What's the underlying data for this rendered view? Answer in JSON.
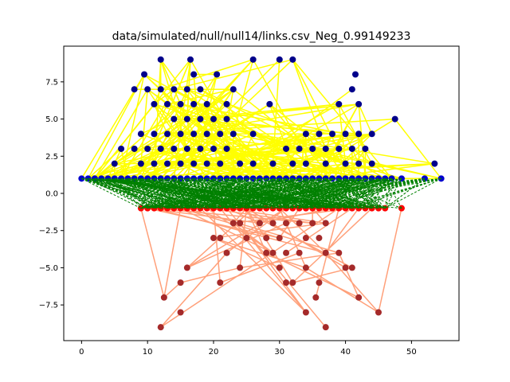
{
  "chart_data": {
    "type": "scatter",
    "title": "data/simulated/null/null14/links.csv_Neg_0.99149233",
    "xlabel": "",
    "ylabel": "",
    "xlim": [
      -2.7,
      57.2
    ],
    "ylim": [
      -9.9,
      9.9
    ],
    "x_ticks": [
      0,
      10,
      20,
      30,
      40,
      50
    ],
    "x_tick_labels": [
      "0",
      "10",
      "20",
      "30",
      "40",
      "50"
    ],
    "y_ticks": [
      -7.5,
      -5.0,
      -2.5,
      0.0,
      2.5,
      5.0,
      7.5
    ],
    "y_tick_labels": [
      "−7.5",
      "−5.0",
      "−2.5",
      "0.0",
      "2.5",
      "5.0",
      "7.5"
    ],
    "grid": false,
    "colors": {
      "upper_edges": "#ffff00",
      "lower_edges": "#ffa07a",
      "cross_edges": "#008000",
      "upper_nodes": "#00008b",
      "baseline_upper_nodes": "#0000cd",
      "lower_nodes": "#a52a2a",
      "baseline_lower_nodes": "#ff0000"
    },
    "upper_nodes": [
      [
        12,
        9
      ],
      [
        16.5,
        9
      ],
      [
        26,
        9
      ],
      [
        30,
        9
      ],
      [
        32,
        9
      ],
      [
        17,
        8
      ],
      [
        20.5,
        8
      ],
      [
        9.5,
        8
      ],
      [
        41.5,
        8
      ],
      [
        8,
        7
      ],
      [
        10,
        7
      ],
      [
        12,
        7
      ],
      [
        14,
        7
      ],
      [
        16,
        7
      ],
      [
        18,
        7
      ],
      [
        23,
        7
      ],
      [
        41,
        7
      ],
      [
        11,
        6
      ],
      [
        13,
        6
      ],
      [
        15,
        6
      ],
      [
        17,
        6
      ],
      [
        19,
        6
      ],
      [
        22,
        6
      ],
      [
        28.5,
        6
      ],
      [
        39,
        6
      ],
      [
        42,
        6
      ],
      [
        14,
        5
      ],
      [
        16,
        5
      ],
      [
        18,
        5
      ],
      [
        20,
        5
      ],
      [
        22,
        5
      ],
      [
        47.5,
        5
      ],
      [
        9,
        4
      ],
      [
        11,
        4
      ],
      [
        13,
        4
      ],
      [
        15,
        4
      ],
      [
        17,
        4
      ],
      [
        19,
        4
      ],
      [
        21,
        4
      ],
      [
        23,
        4
      ],
      [
        26,
        4
      ],
      [
        34,
        4
      ],
      [
        36,
        4
      ],
      [
        38,
        4
      ],
      [
        40,
        4
      ],
      [
        42,
        4
      ],
      [
        44,
        4
      ],
      [
        6,
        3
      ],
      [
        8,
        3
      ],
      [
        10,
        3
      ],
      [
        12,
        3
      ],
      [
        14,
        3
      ],
      [
        16,
        3
      ],
      [
        18,
        3
      ],
      [
        20,
        3
      ],
      [
        22,
        3
      ],
      [
        31,
        3
      ],
      [
        33,
        3
      ],
      [
        35,
        3
      ],
      [
        37,
        3
      ],
      [
        39,
        3
      ],
      [
        41,
        3
      ],
      [
        43,
        3
      ],
      [
        5,
        2
      ],
      [
        9,
        2
      ],
      [
        11,
        2
      ],
      [
        13,
        2
      ],
      [
        15,
        2
      ],
      [
        17,
        2
      ],
      [
        19,
        2
      ],
      [
        21,
        2
      ],
      [
        24,
        2
      ],
      [
        26,
        2
      ],
      [
        29,
        2
      ],
      [
        32,
        2
      ],
      [
        34,
        2
      ],
      [
        37,
        2
      ],
      [
        40,
        2
      ],
      [
        42,
        2
      ],
      [
        44,
        2
      ],
      [
        53.5,
        2
      ]
    ],
    "lower_nodes": [
      [
        20,
        -3
      ],
      [
        21,
        -3
      ],
      [
        23,
        -2
      ],
      [
        24,
        -2
      ],
      [
        27,
        -2
      ],
      [
        29,
        -2
      ],
      [
        31,
        -2
      ],
      [
        33,
        -2
      ],
      [
        35,
        -2
      ],
      [
        37,
        -2
      ],
      [
        22,
        -4
      ],
      [
        25,
        -3
      ],
      [
        28,
        -3
      ],
      [
        30,
        -3
      ],
      [
        34,
        -3
      ],
      [
        36,
        -3
      ],
      [
        28,
        -4
      ],
      [
        29,
        -4
      ],
      [
        31,
        -4
      ],
      [
        33,
        -4
      ],
      [
        37,
        -4
      ],
      [
        39,
        -4
      ],
      [
        16,
        -5
      ],
      [
        24,
        -5
      ],
      [
        30,
        -5
      ],
      [
        34,
        -5
      ],
      [
        40,
        -5
      ],
      [
        41,
        -5
      ],
      [
        15,
        -6
      ],
      [
        21,
        -6
      ],
      [
        31,
        -6
      ],
      [
        32,
        -6
      ],
      [
        36,
        -6
      ],
      [
        12.5,
        -7
      ],
      [
        35.5,
        -7
      ],
      [
        42,
        -7
      ],
      [
        15,
        -8
      ],
      [
        34,
        -8
      ],
      [
        45,
        -8
      ],
      [
        12,
        -9
      ],
      [
        37,
        -9
      ]
    ],
    "baseline_upper_x": [
      0,
      1,
      2,
      3,
      4,
      5,
      6,
      7,
      8,
      9,
      10,
      11,
      12,
      13,
      14,
      15,
      16,
      17,
      18,
      19,
      20,
      21,
      22,
      23,
      24,
      25,
      26,
      27,
      28,
      29,
      30,
      31,
      32,
      33,
      34,
      35,
      36,
      37,
      38,
      39,
      40,
      41,
      42,
      43,
      44,
      45,
      46,
      47,
      48.5,
      52,
      54.5
    ],
    "baseline_lower_x": [
      9,
      10,
      11,
      12,
      13,
      14,
      15,
      16,
      17,
      18,
      19,
      20,
      21,
      22,
      23,
      24,
      25,
      26,
      27,
      28,
      29,
      30,
      31,
      32,
      33,
      34,
      35,
      36,
      37,
      38,
      39,
      40,
      41,
      42,
      43,
      44,
      45,
      46,
      48.5
    ],
    "edge_counts": {
      "upper": 320,
      "lower": 80,
      "cross": 440
    }
  }
}
